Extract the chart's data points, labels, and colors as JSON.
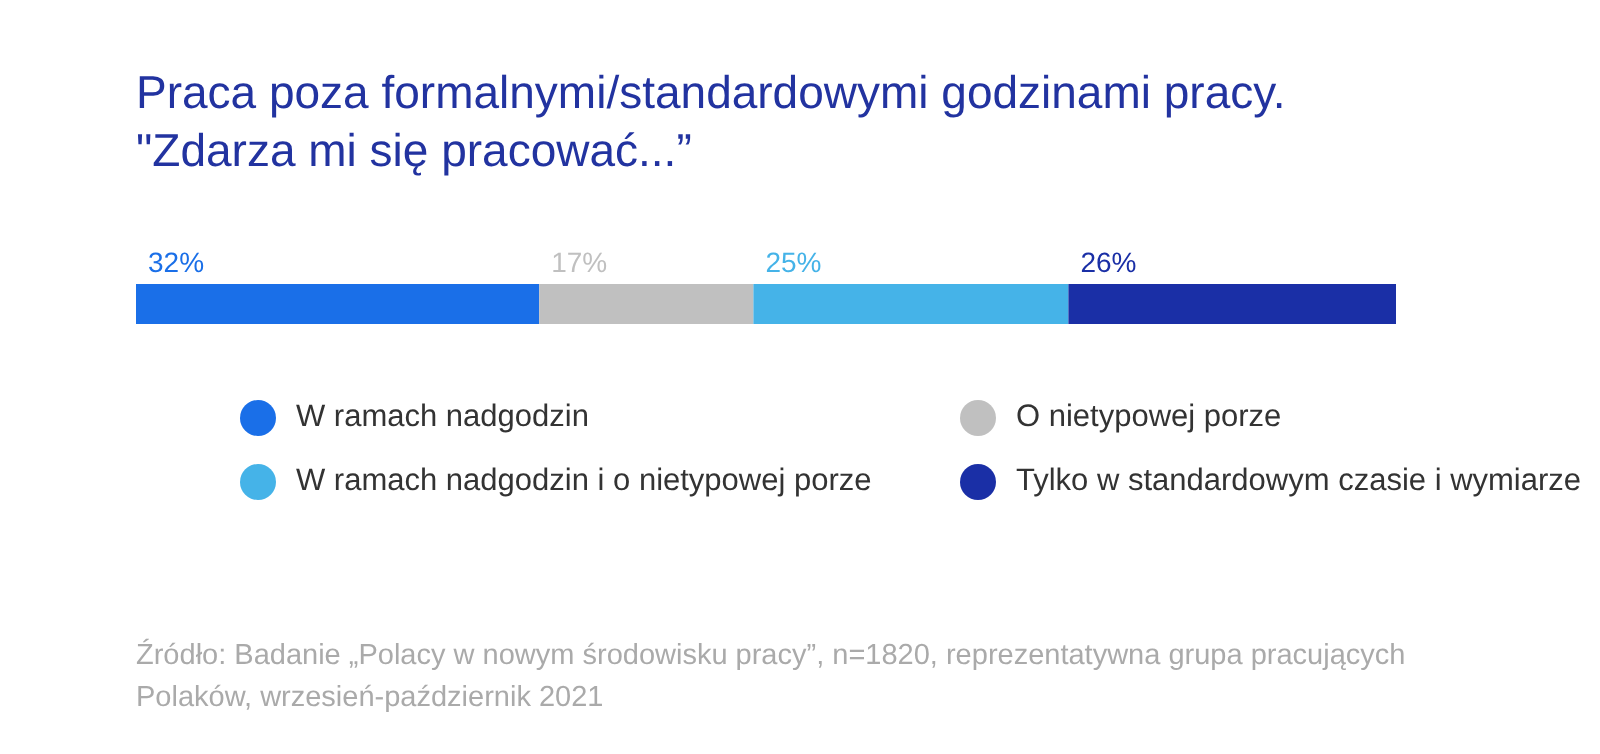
{
  "chart_data": {
    "type": "bar",
    "stacked": true,
    "orientation": "horizontal",
    "title": "Praca poza formalnymi/standardowymi godzinami pracy. \"Zdarza mi się pracować...”",
    "categories": [
      null
    ],
    "series": [
      {
        "name": "W ramach nadgodzin",
        "color": "#1a6fe8",
        "values": [
          32
        ],
        "value_labels": [
          "32%"
        ]
      },
      {
        "name": "O nietypowej porze",
        "color": "#c0c0c0",
        "values": [
          17
        ],
        "value_labels": [
          "17%"
        ]
      },
      {
        "name": "W ramach nadgodzin i o nietypowej porze",
        "color": "#45b3e8",
        "values": [
          25
        ],
        "value_labels": [
          "25%"
        ]
      },
      {
        "name": "Tylko w standardowym czasie i wymiarze",
        "color": "#1a2fa6",
        "values": [
          26
        ],
        "value_labels": [
          "26%"
        ]
      }
    ],
    "legend": "bottom",
    "annotations": [
      "Źródło: Badanie „Polacy w nowym środowisku pracy”, n=1820, reprezentatywna grupa pracujących Polaków, wrzesień-październik 2021"
    ]
  }
}
